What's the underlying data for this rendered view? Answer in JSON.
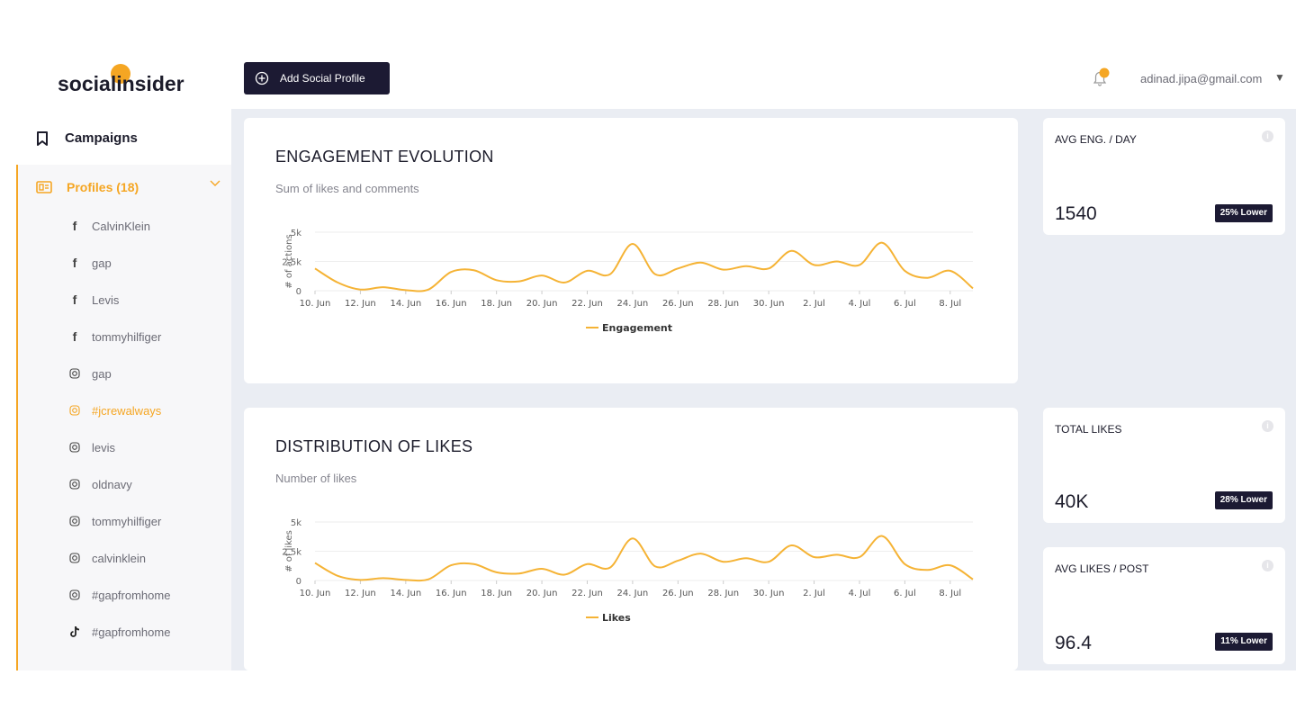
{
  "brand": {
    "name": "socialinsider",
    "accent": "#f5a623",
    "dark": "#1c1a33"
  },
  "sidebar": {
    "campaigns_label": "Campaigns",
    "profiles_label": "Profiles (18)",
    "profiles": [
      {
        "icon": "facebook-icon",
        "name": "CalvinKlein",
        "active": false
      },
      {
        "icon": "facebook-icon",
        "name": "gap",
        "active": false
      },
      {
        "icon": "facebook-icon",
        "name": "Levis",
        "active": false
      },
      {
        "icon": "facebook-icon",
        "name": "tommyhilfiger",
        "active": false
      },
      {
        "icon": "instagram-icon",
        "name": "gap",
        "active": false
      },
      {
        "icon": "instagram-icon",
        "name": "#jcrewalways",
        "active": true
      },
      {
        "icon": "instagram-icon",
        "name": "levis",
        "active": false
      },
      {
        "icon": "instagram-icon",
        "name": "oldnavy",
        "active": false
      },
      {
        "icon": "instagram-icon",
        "name": "tommyhilfiger",
        "active": false
      },
      {
        "icon": "instagram-icon",
        "name": "calvinklein",
        "active": false
      },
      {
        "icon": "instagram-icon",
        "name": "#gapfromhome",
        "active": false
      },
      {
        "icon": "tiktok-icon",
        "name": "#gapfromhome",
        "active": false
      }
    ]
  },
  "topbar": {
    "add_button_label": "Add Social Profile",
    "user_email": "adinad.jipa@gmail.com",
    "caret": "▼"
  },
  "engagement_card": {
    "title": "ENGAGEMENT EVOLUTION",
    "subtitle": "Sum of likes and comments"
  },
  "likes_card": {
    "title": "DISTRIBUTION OF LIKES",
    "subtitle": "Number of likes"
  },
  "stats": [
    {
      "title": "AVG ENG. / DAY",
      "value": "1540",
      "badge": "25% Lower"
    },
    {
      "title": "TOTAL LIKES",
      "value": "40K",
      "badge": "28% Lower"
    },
    {
      "title": "AVG LIKES / POST",
      "value": "96.4",
      "badge": "11% Lower"
    }
  ],
  "chart_data": [
    {
      "type": "line",
      "ylabel": "# of actions",
      "y_ticks": [
        "5k",
        "2.5k",
        "0"
      ],
      "ylim": [
        0,
        5000
      ],
      "x_tick_labels": [
        "10. Jun",
        "12. Jun",
        "14. Jun",
        "16. Jun",
        "18. Jun",
        "20. Jun",
        "22. Jun",
        "24. Jun",
        "26. Jun",
        "28. Jun",
        "30. Jun",
        "2. Jul",
        "4. Jul",
        "6. Jul",
        "8. Jul"
      ],
      "x": [
        "10. Jun",
        "11. Jun",
        "12. Jun",
        "13. Jun",
        "14. Jun",
        "15. Jun",
        "16. Jun",
        "17. Jun",
        "18. Jun",
        "19. Jun",
        "20. Jun",
        "21. Jun",
        "22. Jun",
        "23. Jun",
        "24. Jun",
        "25. Jun",
        "26. Jun",
        "27. Jun",
        "28. Jun",
        "29. Jun",
        "30. Jun",
        "1. Jul",
        "2. Jul",
        "3. Jul",
        "4. Jul",
        "5. Jul",
        "6. Jul",
        "7. Jul",
        "8. Jul",
        "9. Jul"
      ],
      "legend_position": "bottom",
      "series": [
        {
          "name": "Engagement",
          "color": "#f5b335",
          "values": [
            1900,
            700,
            100,
            300,
            50,
            100,
            1600,
            1750,
            900,
            800,
            1300,
            700,
            1700,
            1400,
            4000,
            1400,
            1900,
            2400,
            1800,
            2100,
            1900,
            3400,
            2200,
            2500,
            2200,
            4100,
            1700,
            1100,
            1700,
            200
          ]
        }
      ]
    },
    {
      "type": "line",
      "ylabel": "# of likes",
      "y_ticks": [
        "5k",
        "2.5k",
        "0"
      ],
      "ylim": [
        0,
        5000
      ],
      "x_tick_labels": [
        "10. Jun",
        "12. Jun",
        "14. Jun",
        "16. Jun",
        "18. Jun",
        "20. Jun",
        "22. Jun",
        "24. Jun",
        "26. Jun",
        "28. Jun",
        "30. Jun",
        "2. Jul",
        "4. Jul",
        "6. Jul",
        "8. Jul"
      ],
      "x": [
        "10. Jun",
        "11. Jun",
        "12. Jun",
        "13. Jun",
        "14. Jun",
        "15. Jun",
        "16. Jun",
        "17. Jun",
        "18. Jun",
        "19. Jun",
        "20. Jun",
        "21. Jun",
        "22. Jun",
        "23. Jun",
        "24. Jun",
        "25. Jun",
        "26. Jun",
        "27. Jun",
        "28. Jun",
        "29. Jun",
        "30. Jun",
        "1. Jul",
        "2. Jul",
        "3. Jul",
        "4. Jul",
        "5. Jul",
        "6. Jul",
        "7. Jul",
        "8. Jul",
        "9. Jul"
      ],
      "legend_position": "bottom",
      "series": [
        {
          "name": "Likes",
          "color": "#f5b335",
          "values": [
            1500,
            400,
            50,
            200,
            50,
            100,
            1300,
            1400,
            700,
            600,
            1000,
            500,
            1400,
            1100,
            3600,
            1200,
            1700,
            2300,
            1600,
            1900,
            1600,
            3000,
            2000,
            2200,
            2000,
            3800,
            1400,
            900,
            1300,
            100
          ]
        }
      ]
    }
  ]
}
